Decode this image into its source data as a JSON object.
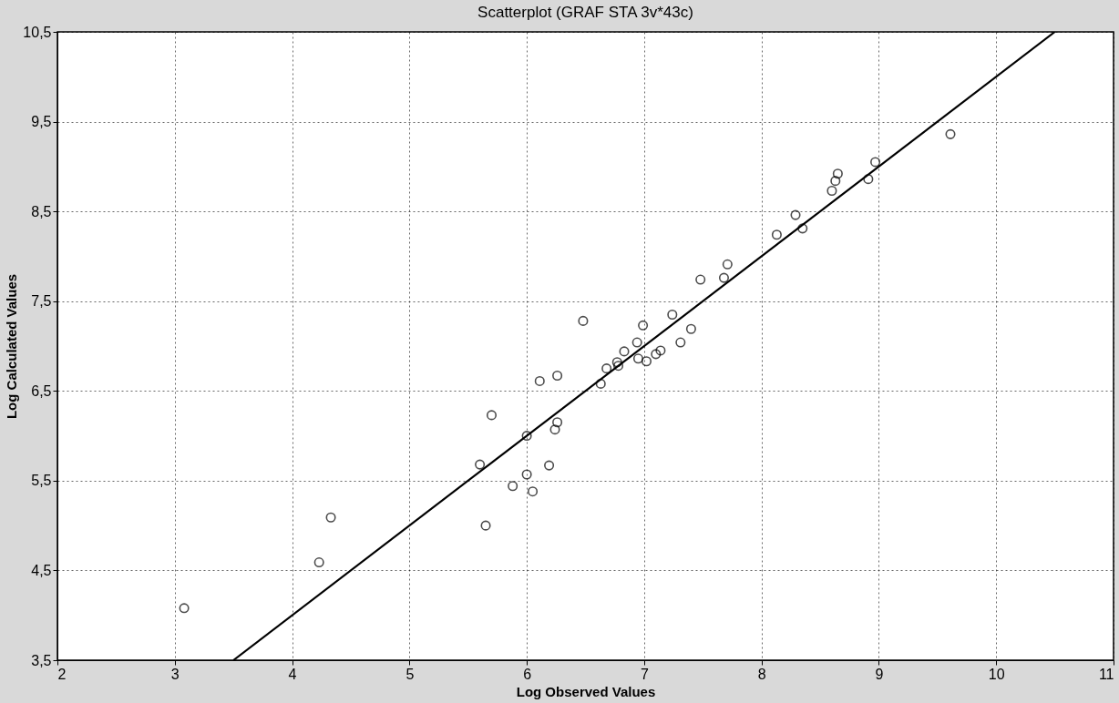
{
  "chart_data": {
    "type": "scatter",
    "title": "Scatterplot (GRAF STA 3v*43c)",
    "xlabel": "Log Observed Values",
    "ylabel": "Log Calculated Values",
    "xlim": [
      2,
      11
    ],
    "ylim": [
      3.5,
      10.5
    ],
    "xticks": [
      2,
      3,
      4,
      5,
      6,
      7,
      8,
      9,
      10,
      11
    ],
    "yticks": [
      {
        "value": 3.5,
        "label": "3,5"
      },
      {
        "value": 4.5,
        "label": "4,5"
      },
      {
        "value": 5.5,
        "label": "5,5"
      },
      {
        "value": 6.5,
        "label": "6,5"
      },
      {
        "value": 7.5,
        "label": "7,5"
      },
      {
        "value": 8.5,
        "label": "8,5"
      },
      {
        "value": 9.5,
        "label": "9,5"
      },
      {
        "value": 10.5,
        "label": "10,5"
      }
    ],
    "grid": true,
    "series": [
      {
        "marker": "circle",
        "color": "#000000",
        "x": [
          3.08,
          4.23,
          4.33,
          5.65,
          5.6,
          5.7,
          5.88,
          6.0,
          6.0,
          6.05,
          6.19,
          6.24,
          6.26,
          6.11,
          6.26,
          6.48,
          6.63,
          6.68,
          6.77,
          6.78,
          6.83,
          6.94,
          6.95,
          6.99,
          7.02,
          7.1,
          7.14,
          7.24,
          7.31,
          7.4,
          7.48,
          7.68,
          7.71,
          8.13,
          8.29,
          8.35,
          8.6,
          8.63,
          8.65,
          8.91,
          8.97,
          9.61
        ],
        "values": [
          4.08,
          4.59,
          5.09,
          5.0,
          5.68,
          6.23,
          5.44,
          5.57,
          6.0,
          5.38,
          5.67,
          6.07,
          6.15,
          6.61,
          6.67,
          7.28,
          6.58,
          6.75,
          6.82,
          6.78,
          6.94,
          7.04,
          6.86,
          7.23,
          6.83,
          6.91,
          6.95,
          7.35,
          7.04,
          7.19,
          7.74,
          7.76,
          7.91,
          8.24,
          8.46,
          8.31,
          8.73,
          8.84,
          8.92,
          8.86,
          9.05,
          9.36
        ]
      },
      {
        "type": "line",
        "color": "#000000",
        "x": [
          3.5,
          10.5
        ],
        "values": [
          3.5,
          10.5
        ],
        "line_style": "solid"
      }
    ]
  }
}
